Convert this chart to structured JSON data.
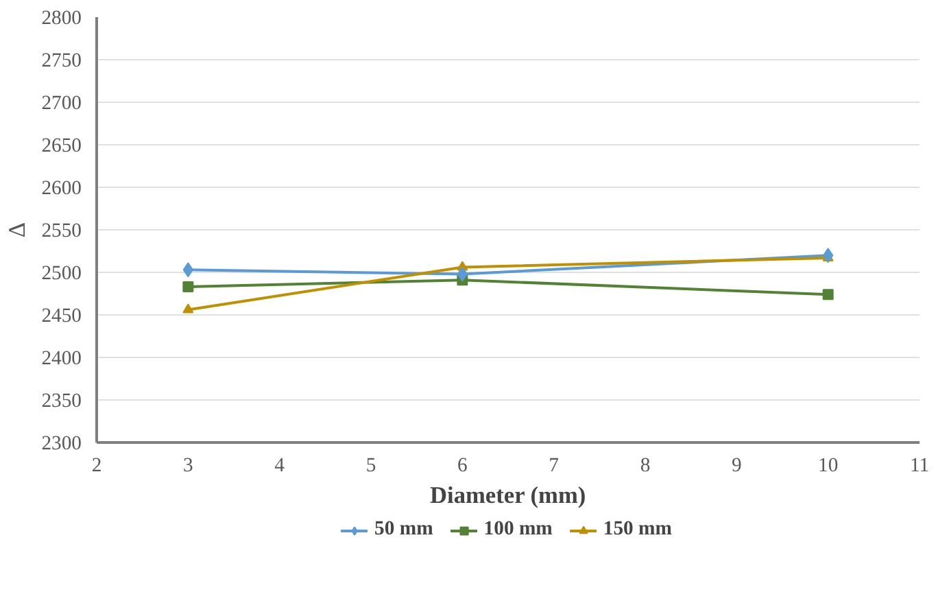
{
  "chart_data": {
    "type": "line",
    "xlabel": "Diameter (mm)",
    "ylabel": "Δ",
    "xlim": [
      2,
      11
    ],
    "xticks": [
      2,
      3,
      4,
      5,
      6,
      7,
      8,
      9,
      10,
      11
    ],
    "ylim": [
      2300,
      2800
    ],
    "yticks": [
      2300,
      2350,
      2400,
      2450,
      2500,
      2550,
      2600,
      2650,
      2700,
      2750,
      2800
    ],
    "grid": "y",
    "legend": "bottom",
    "line_style": "solid",
    "x": [
      3,
      6,
      10
    ],
    "series": [
      {
        "name": "50 mm",
        "color": "#5b9bd5",
        "marker": "diamond",
        "values": [
          2503,
          2498,
          2520
        ]
      },
      {
        "name": "100 mm",
        "color": "#548235",
        "marker": "square",
        "values": [
          2483,
          2491,
          2474
        ]
      },
      {
        "name": "150 mm",
        "color": "#bf9000",
        "marker": "triangle",
        "values": [
          2456,
          2506,
          2517
        ]
      }
    ]
  }
}
